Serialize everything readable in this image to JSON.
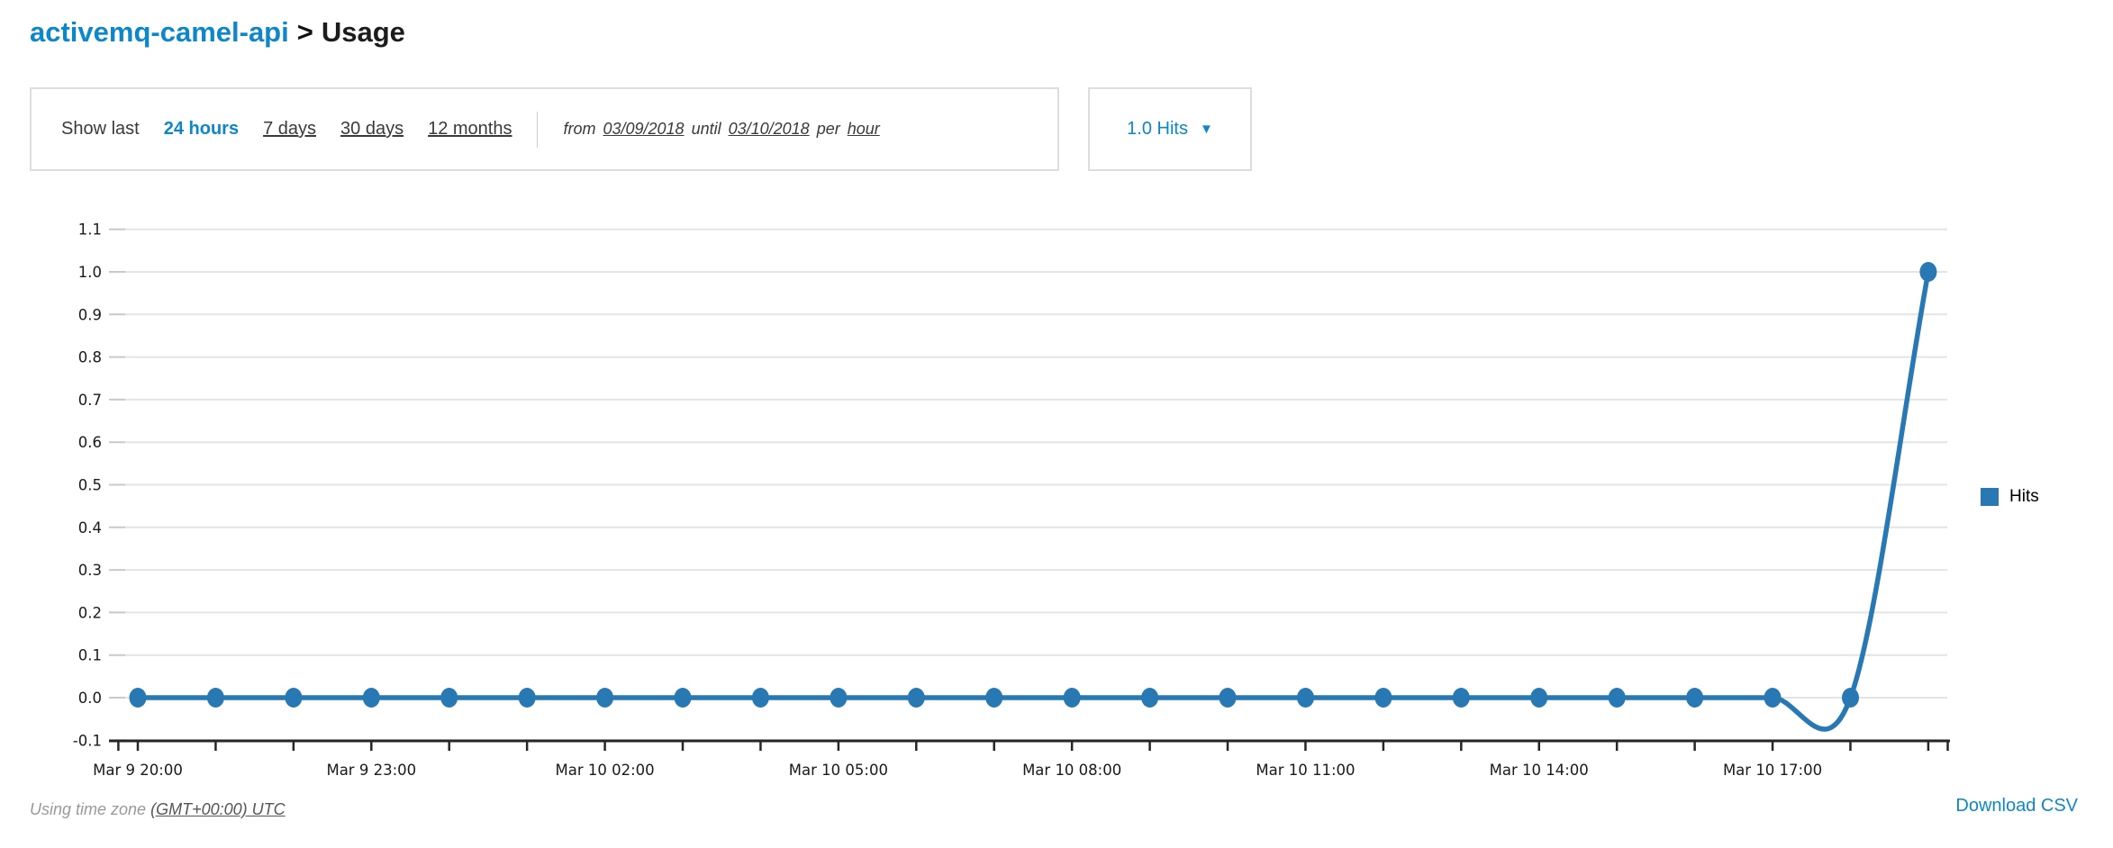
{
  "header": {
    "api_name": "activemq-camel-api",
    "separator": ">",
    "section": "Usage"
  },
  "filter_bar": {
    "show_last_label": "Show last",
    "periods": [
      {
        "label": "24 hours",
        "selected": true
      },
      {
        "label": "7 days",
        "selected": false
      },
      {
        "label": "30 days",
        "selected": false
      },
      {
        "label": "12 months",
        "selected": false
      }
    ],
    "range": {
      "from_label": "from",
      "from_date": "03/09/2018",
      "until_label": "until",
      "until_date": "03/10/2018",
      "per_label": "per",
      "granularity": "hour"
    }
  },
  "metric_dropdown": {
    "label": "1.0 Hits"
  },
  "icons": {
    "caret_down": "▼"
  },
  "chart_data": {
    "type": "line",
    "title": "",
    "xlabel": "",
    "ylabel": "",
    "x": [
      "Mar 9 20:00",
      "Mar 9 21:00",
      "Mar 9 22:00",
      "Mar 9 23:00",
      "Mar 10 00:00",
      "Mar 10 01:00",
      "Mar 10 02:00",
      "Mar 10 03:00",
      "Mar 10 04:00",
      "Mar 10 05:00",
      "Mar 10 06:00",
      "Mar 10 07:00",
      "Mar 10 08:00",
      "Mar 10 09:00",
      "Mar 10 10:00",
      "Mar 10 11:00",
      "Mar 10 12:00",
      "Mar 10 13:00",
      "Mar 10 14:00",
      "Mar 10 15:00",
      "Mar 10 16:00",
      "Mar 10 17:00",
      "Mar 10 18:00",
      "Mar 10 19:00"
    ],
    "series": [
      {
        "name": "Hits",
        "values": [
          0,
          0,
          0,
          0,
          0,
          0,
          0,
          0,
          0,
          0,
          0,
          0,
          0,
          0,
          0,
          0,
          0,
          0,
          0,
          0,
          0,
          0,
          0,
          1
        ]
      }
    ],
    "ylim": [
      -0.1,
      1.1
    ],
    "y_tick_step": 0.1,
    "x_label_every": 3,
    "grid": true,
    "legend_position": "right",
    "smoothing": "catmull-rom"
  },
  "footer": {
    "timezone_prefix": "Using time zone",
    "timezone_link": "(GMT+00:00) UTC",
    "download_csv": "Download CSV"
  },
  "colors": {
    "accent_blue": "#0d87c9",
    "series_blue": "#2878b4",
    "grid_gray": "#e4e4e4",
    "axis_dark": "#262626"
  }
}
